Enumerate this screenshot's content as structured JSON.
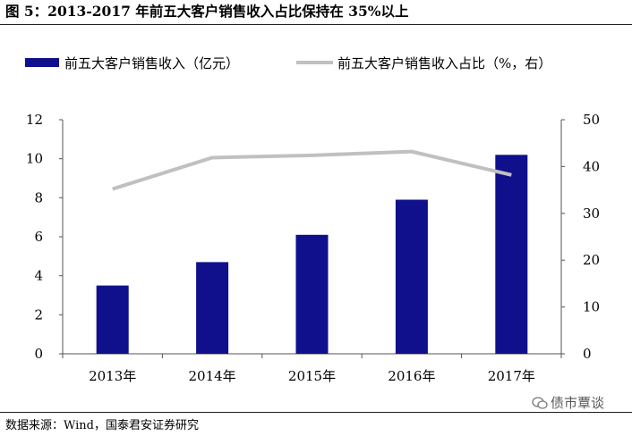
{
  "figure": {
    "title": "图 5：2013-2017 年前五大客户销售收入占比保持在 35%以上",
    "source": "数据来源：Wind，国泰君安证券研究",
    "watermark": "债市覃谈"
  },
  "legend": {
    "bar_label": "前五大客户销售收入（亿元）",
    "line_label": "前五大客户销售收入占比（%，右）"
  },
  "colors": {
    "bar": "#10108c",
    "line": "#c0c0c0",
    "axis": "#555555"
  },
  "chart_data": {
    "type": "bar",
    "categories": [
      "2013年",
      "2014年",
      "2015年",
      "2016年",
      "2017年"
    ],
    "series": [
      {
        "name": "前五大客户销售收入（亿元）",
        "type": "bar",
        "axis": "left",
        "values": [
          3.5,
          4.7,
          6.1,
          7.9,
          10.2
        ]
      },
      {
        "name": "前五大客户销售收入占比（%，右）",
        "type": "line",
        "axis": "right",
        "values": [
          35.2,
          41.9,
          42.4,
          43.2,
          38.2
        ]
      }
    ],
    "y_left": {
      "min": 0,
      "max": 12,
      "ticks": [
        0,
        2,
        4,
        6,
        8,
        10,
        12
      ]
    },
    "y_right": {
      "min": 0,
      "max": 50,
      "ticks": [
        0,
        10,
        20,
        30,
        40,
        50
      ]
    },
    "legend_position": "top",
    "grid": false
  }
}
